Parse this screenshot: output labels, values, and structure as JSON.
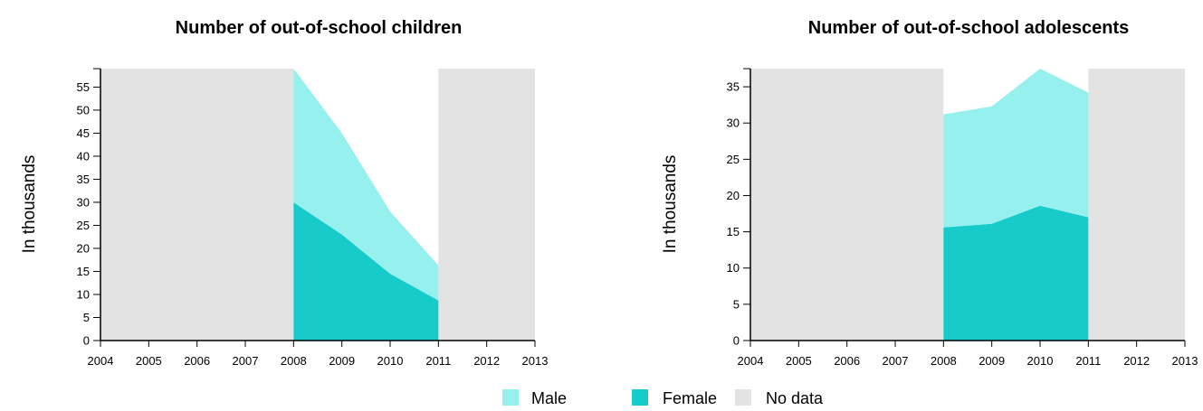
{
  "colors": {
    "male": "#96f0ee",
    "female": "#16cbc9",
    "nodata": "#e3e3e3",
    "axis": "#000000"
  },
  "legend": {
    "items": [
      {
        "key": "male",
        "label": "Male"
      },
      {
        "key": "female",
        "label": "Female"
      },
      {
        "key": "nodata",
        "label": "No data"
      }
    ]
  },
  "chart_data": [
    {
      "type": "area",
      "title": "Number of out-of-school children",
      "ylabel": "In thousands",
      "xlabel": "",
      "x_ticks": [
        2004,
        2005,
        2006,
        2007,
        2008,
        2009,
        2010,
        2011,
        2012,
        2013
      ],
      "xlim": [
        2004,
        2013
      ],
      "y_ticks": [
        0,
        5,
        10,
        15,
        20,
        25,
        30,
        35,
        40,
        45,
        50,
        55
      ],
      "ylim": [
        0,
        59
      ],
      "stacked": true,
      "x": [
        2008,
        2009,
        2010,
        2011
      ],
      "series": [
        {
          "name": "Female",
          "color_key": "female",
          "values": [
            30.0,
            23.0,
            14.5,
            8.7
          ]
        },
        {
          "name": "Male",
          "color_key": "male",
          "values": [
            29.0,
            22.0,
            13.5,
            7.6
          ]
        }
      ],
      "no_data_ranges": [
        [
          2004,
          2008
        ],
        [
          2011,
          2013
        ]
      ]
    },
    {
      "type": "area",
      "title": "Number of out-of-school adolescents",
      "ylabel": "In thousands",
      "xlabel": "",
      "x_ticks": [
        2004,
        2005,
        2006,
        2007,
        2008,
        2009,
        2010,
        2011,
        2012,
        2013
      ],
      "xlim": [
        2004,
        2013
      ],
      "y_ticks": [
        0,
        5,
        10,
        15,
        20,
        25,
        30,
        35
      ],
      "ylim": [
        0,
        37.5
      ],
      "stacked": true,
      "x": [
        2008,
        2009,
        2010,
        2011
      ],
      "series": [
        {
          "name": "Female",
          "color_key": "female",
          "values": [
            15.6,
            16.1,
            18.6,
            17.0
          ]
        },
        {
          "name": "Male",
          "color_key": "male",
          "values": [
            15.6,
            16.2,
            18.9,
            17.2
          ]
        }
      ],
      "no_data_ranges": [
        [
          2004,
          2008
        ],
        [
          2011,
          2013
        ]
      ]
    }
  ]
}
